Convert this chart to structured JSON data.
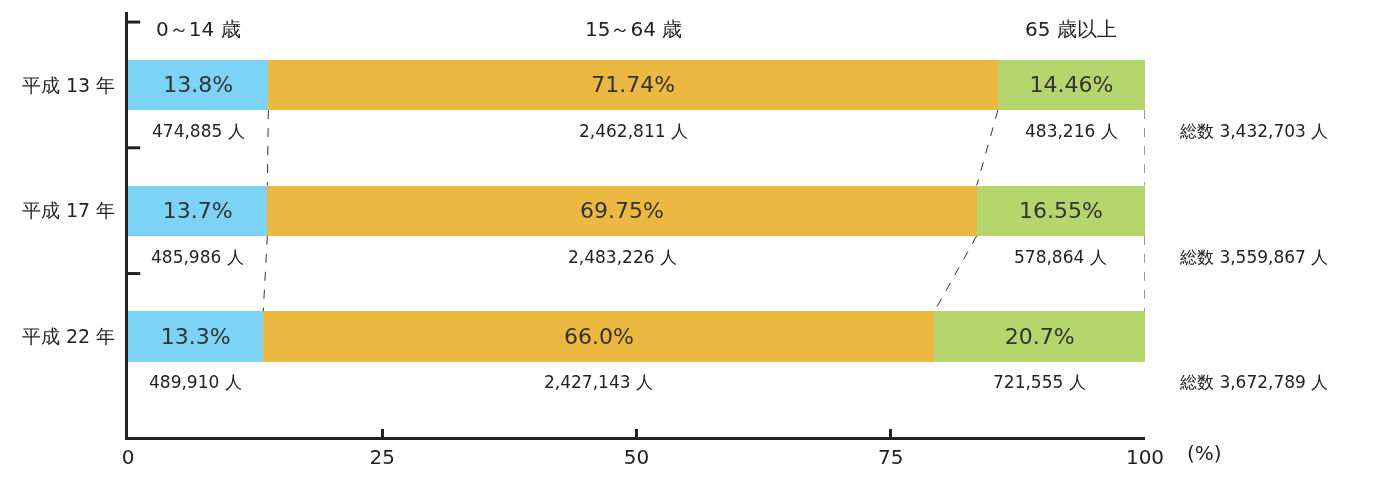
{
  "chart_data": {
    "type": "bar",
    "orientation": "horizontal",
    "stacked": true,
    "xlabel": "(%)",
    "categories": [
      "平成 13 年",
      "平成 17 年",
      "平成 22 年"
    ],
    "series": [
      {
        "name": "0～14 歳",
        "color": "#7dd3f5",
        "values": [
          13.8,
          13.7,
          13.3
        ],
        "value_labels": [
          "13.8%",
          "13.7%",
          "13.3%"
        ]
      },
      {
        "name": "15～64 歳",
        "color": "#ebb842",
        "values": [
          71.74,
          69.75,
          66.0
        ],
        "value_labels": [
          "71.74%",
          "69.75%",
          "66.0%"
        ]
      },
      {
        "name": "65 歳以上",
        "color": "#b5d56d",
        "values": [
          14.46,
          16.55,
          20.7
        ],
        "value_labels": [
          "14.46%",
          "16.55%",
          "20.7%"
        ]
      }
    ],
    "totals": [
      "総数 3,432,703 人",
      "総数 3,559,867 人",
      "総数 3,672,789 人"
    ],
    "annotations": [
      "474,885 人",
      "2,462,811 人",
      "483,216 人",
      "485,986 人",
      "2,483,226 人",
      "578,864 人",
      "489,910 人",
      "2,427,143 人",
      "721,555 人"
    ],
    "xlim": [
      0,
      100
    ],
    "xticks": [
      0,
      25,
      50,
      75,
      100
    ],
    "grid": false,
    "legend": false
  }
}
